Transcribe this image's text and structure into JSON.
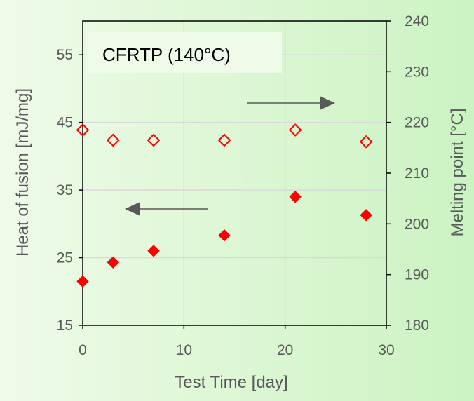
{
  "chart_data": {
    "type": "scatter",
    "title": "CFRTP (140°C)",
    "xlabel": "Test Time [day]",
    "ylabel_left": "Heat of fusion [mJ/mg]",
    "ylabel_right": "Melting point [°C]",
    "xlim": [
      0,
      30
    ],
    "ylim_left": [
      15,
      60
    ],
    "ylim_right": [
      180,
      240
    ],
    "x_ticks": [
      "0",
      "10",
      "20",
      "30"
    ],
    "y_left_ticks": [
      "15",
      "25",
      "35",
      "45",
      "55"
    ],
    "y_right_ticks": [
      "180",
      "190",
      "200",
      "210",
      "220",
      "230",
      "240"
    ],
    "grid": true,
    "series": [
      {
        "axis": "left",
        "marker": "filled-diamond",
        "color": "#ff0000",
        "points": [
          {
            "x": 0,
            "y": 21.5
          },
          {
            "x": 3,
            "y": 24.3
          },
          {
            "x": 7,
            "y": 26.0
          },
          {
            "x": 14,
            "y": 28.3
          },
          {
            "x": 21,
            "y": 34.0
          },
          {
            "x": 28,
            "y": 31.3
          }
        ]
      },
      {
        "axis": "right",
        "marker": "hollow-diamond",
        "color": "#ff0000",
        "points": [
          {
            "x": 0,
            "y": 218.5
          },
          {
            "x": 3,
            "y": 216.5
          },
          {
            "x": 7,
            "y": 216.5
          },
          {
            "x": 14,
            "y": 216.5
          },
          {
            "x": 21,
            "y": 218.5
          },
          {
            "x": 28,
            "y": 216.2
          }
        ]
      }
    ],
    "annotations": [
      {
        "type": "arrow",
        "direction": "left",
        "points_to": "left-axis"
      },
      {
        "type": "arrow",
        "direction": "right",
        "points_to": "right-axis"
      }
    ]
  }
}
